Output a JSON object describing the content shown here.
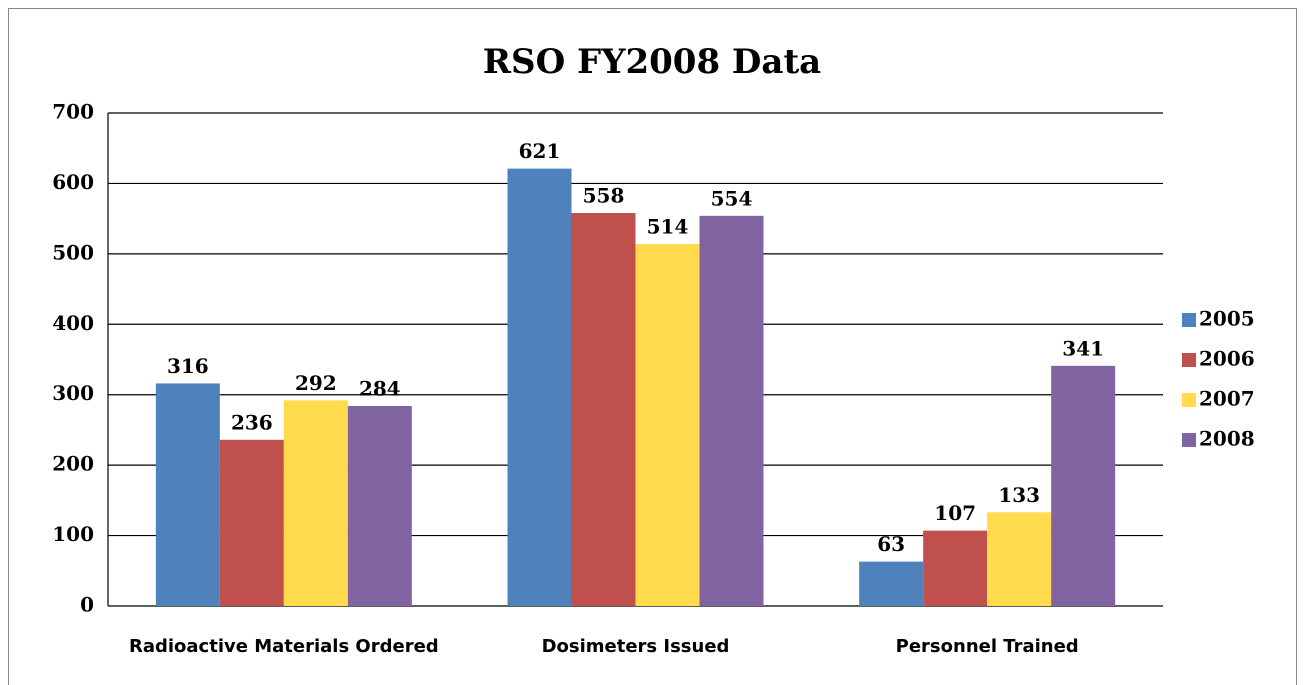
{
  "chart_data": {
    "type": "bar",
    "title": "RSO FY2008 Data",
    "categories": [
      "Radioactive Materials Ordered",
      "Dosimeters Issued",
      "Personnel Trained"
    ],
    "series": [
      {
        "name": "2005",
        "color": "#4f81bd",
        "values": [
          316,
          621,
          63
        ]
      },
      {
        "name": "2006",
        "color": "#c0504d",
        "values": [
          236,
          558,
          107
        ]
      },
      {
        "name": "2007",
        "color": "#ffdb4d",
        "values": [
          292,
          514,
          133
        ]
      },
      {
        "name": "2008",
        "color": "#8064a2",
        "values": [
          284,
          554,
          341
        ]
      }
    ],
    "ylim": [
      0,
      700
    ],
    "yticks": [
      0,
      100,
      200,
      300,
      400,
      500,
      600,
      700
    ],
    "grid": true,
    "legend": "right"
  }
}
